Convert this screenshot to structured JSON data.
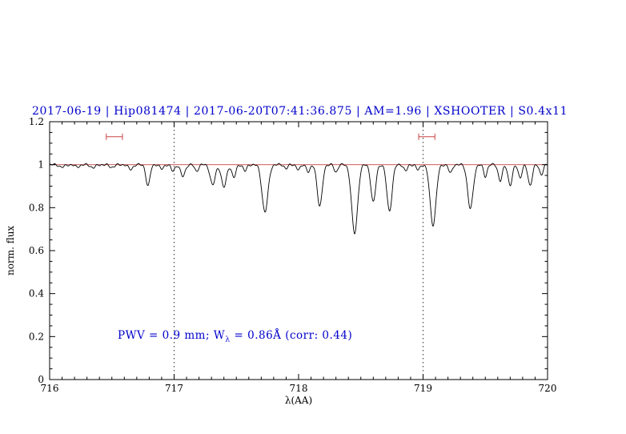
{
  "title": "2017-06-19 | Hip081474 | 2017-06-20T07:41:36.875 | AM=1.96 | XSHOOTER | S0.4x11",
  "annotation": {
    "pre": "PWV = 0.9 mm; W",
    "sub": "λ",
    "post": " = 0.86Å (corr: 0.44)"
  },
  "colors": {
    "title": "#0000cc",
    "annotation": "#0000cc",
    "spectrum": "#000000",
    "continuum": "#cc4444",
    "marker": "#cc4444",
    "axis": "#000000"
  },
  "chart_data": {
    "type": "line",
    "title": "2017-06-19 | Hip081474 | 2017-06-20T07:41:36.875 | AM=1.96 | XSHOOTER | S0.4x11",
    "xlabel": "λ(AA)",
    "ylabel": "norm. flux",
    "xlim": [
      716,
      720
    ],
    "ylim": [
      0,
      1.2
    ],
    "xticks": [
      716,
      717,
      718,
      719,
      720
    ],
    "xtick_labels": [
      "716",
      "717",
      "718",
      "719",
      "720"
    ],
    "yticks": [
      0,
      0.2,
      0.4,
      0.6,
      0.8,
      1,
      1.2
    ],
    "ytick_labels": [
      "0",
      "0.2",
      "0.4",
      "0.6",
      "0.8",
      "1",
      "1.2"
    ],
    "x_minor_step": 0.1,
    "y_minor_step": 0.05,
    "grid": false,
    "guide_lines_x": [
      717,
      719
    ],
    "continuum_level": 1.0,
    "range_markers": [
      {
        "x_min": 716.455,
        "x_max": 716.585,
        "y": 1.13
      },
      {
        "x_min": 718.965,
        "x_max": 719.095,
        "y": 1.13
      }
    ],
    "annotation_text": "PWV = 0.9 mm; Wλ = 0.86Å (corr: 0.44)",
    "spectrum": {
      "continuum_level": 1.0,
      "sample_step": 0.0025,
      "noise": [
        {
          "amp": 0.0035,
          "freq": 150,
          "phase": 0
        },
        {
          "amp": 0.0025,
          "freq": 73,
          "phase": 1.3
        }
      ],
      "absorption_lines": [
        {
          "center": 716.1,
          "depth": 0.012,
          "sigma": 0.02
        },
        {
          "center": 716.22,
          "depth": 0.01,
          "sigma": 0.02
        },
        {
          "center": 716.35,
          "depth": 0.014,
          "sigma": 0.02
        },
        {
          "center": 716.5,
          "depth": 0.012,
          "sigma": 0.02
        },
        {
          "center": 716.65,
          "depth": 0.022,
          "sigma": 0.018
        },
        {
          "center": 716.79,
          "depth": 0.1,
          "sigma": 0.016
        },
        {
          "center": 716.9,
          "depth": 0.02,
          "sigma": 0.015
        },
        {
          "center": 716.99,
          "depth": 0.03,
          "sigma": 0.015
        },
        {
          "center": 717.07,
          "depth": 0.055,
          "sigma": 0.018
        },
        {
          "center": 717.18,
          "depth": 0.03,
          "sigma": 0.015
        },
        {
          "center": 717.31,
          "depth": 0.095,
          "sigma": 0.02
        },
        {
          "center": 717.4,
          "depth": 0.105,
          "sigma": 0.02
        },
        {
          "center": 717.48,
          "depth": 0.06,
          "sigma": 0.016
        },
        {
          "center": 717.57,
          "depth": 0.03,
          "sigma": 0.014
        },
        {
          "center": 717.73,
          "depth": 0.22,
          "sigma": 0.024
        },
        {
          "center": 717.9,
          "depth": 0.018,
          "sigma": 0.014
        },
        {
          "center": 718.0,
          "depth": 0.025,
          "sigma": 0.014
        },
        {
          "center": 718.08,
          "depth": 0.035,
          "sigma": 0.014
        },
        {
          "center": 718.17,
          "depth": 0.195,
          "sigma": 0.02
        },
        {
          "center": 718.3,
          "depth": 0.035,
          "sigma": 0.014
        },
        {
          "center": 718.45,
          "depth": 0.32,
          "sigma": 0.024
        },
        {
          "center": 718.6,
          "depth": 0.175,
          "sigma": 0.019
        },
        {
          "center": 718.73,
          "depth": 0.215,
          "sigma": 0.021
        },
        {
          "center": 718.86,
          "depth": 0.03,
          "sigma": 0.014
        },
        {
          "center": 718.96,
          "depth": 0.025,
          "sigma": 0.014
        },
        {
          "center": 719.08,
          "depth": 0.28,
          "sigma": 0.024
        },
        {
          "center": 719.22,
          "depth": 0.04,
          "sigma": 0.014
        },
        {
          "center": 719.38,
          "depth": 0.205,
          "sigma": 0.022
        },
        {
          "center": 719.5,
          "depth": 0.055,
          "sigma": 0.014
        },
        {
          "center": 719.62,
          "depth": 0.075,
          "sigma": 0.016
        },
        {
          "center": 719.7,
          "depth": 0.095,
          "sigma": 0.017
        },
        {
          "center": 719.78,
          "depth": 0.06,
          "sigma": 0.015
        },
        {
          "center": 719.86,
          "depth": 0.095,
          "sigma": 0.017
        },
        {
          "center": 719.95,
          "depth": 0.045,
          "sigma": 0.015
        }
      ]
    }
  }
}
